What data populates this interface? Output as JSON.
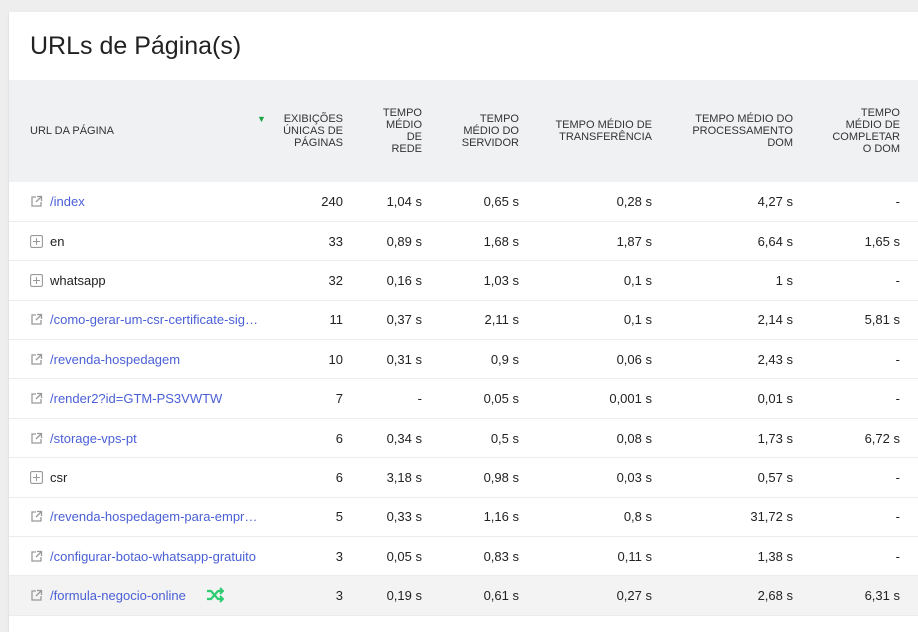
{
  "title": "URLs de Página(s)",
  "columns": [
    {
      "label": "URL DA PÁGINA"
    },
    {
      "label": "EXIBIÇÕES ÚNICAS DE PÁGINAS",
      "sorted": "desc"
    },
    {
      "label": "TEMPO MÉDIO DE REDE"
    },
    {
      "label": "TEMPO MÉDIO DO SERVIDOR"
    },
    {
      "label": "TEMPO MÉDIO DE TRANSFERÊNCIA"
    },
    {
      "label": "TEMPO MÉDIO DO PROCESSAMENTO DOM"
    },
    {
      "label": "TEMPO MÉDIO DE COMPLETAR O DOM"
    }
  ],
  "rows": [
    {
      "url": "/index",
      "type": "link",
      "views": "240",
      "net": "1,04 s",
      "server": "0,65 s",
      "transfer": "0,28 s",
      "dom_proc": "4,27 s",
      "dom_complete": "-"
    },
    {
      "url": "en",
      "type": "folder",
      "views": "33",
      "net": "0,89 s",
      "server": "1,68 s",
      "transfer": "1,87 s",
      "dom_proc": "6,64 s",
      "dom_complete": "1,65 s"
    },
    {
      "url": "whatsapp",
      "type": "folder",
      "views": "32",
      "net": "0,16 s",
      "server": "1,03 s",
      "transfer": "0,1 s",
      "dom_proc": "1 s",
      "dom_complete": "-"
    },
    {
      "url": "/como-gerar-um-csr-certificate-sig…",
      "type": "link",
      "views": "11",
      "net": "0,37 s",
      "server": "2,11 s",
      "transfer": "0,1 s",
      "dom_proc": "2,14 s",
      "dom_complete": "5,81 s"
    },
    {
      "url": "/revenda-hospedagem",
      "type": "link",
      "views": "10",
      "net": "0,31 s",
      "server": "0,9 s",
      "transfer": "0,06 s",
      "dom_proc": "2,43 s",
      "dom_complete": "-"
    },
    {
      "url": "/render2?id=GTM-PS3VWTW",
      "type": "link",
      "views": "7",
      "net": "-",
      "server": "0,05 s",
      "transfer": "0,001 s",
      "dom_proc": "0,01 s",
      "dom_complete": "-"
    },
    {
      "url": "/storage-vps-pt",
      "type": "link",
      "views": "6",
      "net": "0,34 s",
      "server": "0,5 s",
      "transfer": "0,08 s",
      "dom_proc": "1,73 s",
      "dom_complete": "6,72 s"
    },
    {
      "url": "csr",
      "type": "folder",
      "views": "6",
      "net": "3,18 s",
      "server": "0,98 s",
      "transfer": "0,03 s",
      "dom_proc": "0,57 s",
      "dom_complete": "-"
    },
    {
      "url": "/revenda-hospedagem-para-empr…",
      "type": "link",
      "views": "5",
      "net": "0,33 s",
      "server": "1,16 s",
      "transfer": "0,8 s",
      "dom_proc": "31,72 s",
      "dom_complete": "-"
    },
    {
      "url": "/configurar-botao-whatsapp-gratuito",
      "type": "link",
      "views": "3",
      "net": "0,05 s",
      "server": "0,83 s",
      "transfer": "0,11 s",
      "dom_proc": "1,38 s",
      "dom_complete": "-"
    },
    {
      "url": "/formula-negocio-online",
      "type": "link",
      "views": "3",
      "net": "0,19 s",
      "server": "0,61 s",
      "transfer": "0,27 s",
      "dom_proc": "2,68 s",
      "dom_complete": "6,31 s",
      "hover": true,
      "row_action_icon": "shuffle-icon"
    }
  ],
  "colors": {
    "link": "#4a5fd6",
    "sort_indicator": "#1ea446",
    "header_bg": "#f0f1f3"
  }
}
